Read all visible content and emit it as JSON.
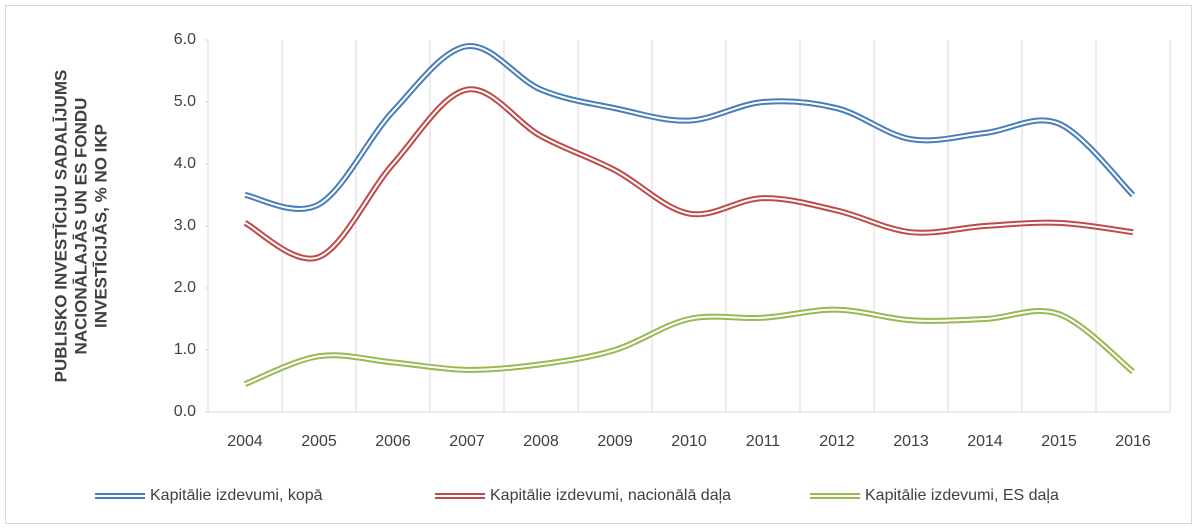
{
  "chart_data": {
    "type": "line",
    "ylabel": [
      "PUBLISKO INVESTĪCIJU SADALĪJUMS",
      "NACIONĀLAJĀS UN ES FONDU",
      "INVESTĪCIJĀS, % NO IKP"
    ],
    "categories": [
      "2004",
      "2005",
      "2006",
      "2007",
      "2008",
      "2009",
      "2010",
      "2011",
      "2012",
      "2013",
      "2014",
      "2015",
      "2016"
    ],
    "series": [
      {
        "name": "Kapitālie izdevumi, kopā",
        "color": "#4a7ebb",
        "values": [
          3.5,
          3.35,
          4.85,
          5.9,
          5.2,
          4.9,
          4.7,
          5.0,
          4.9,
          4.4,
          4.5,
          4.65,
          3.5
        ]
      },
      {
        "name": "Kapitālie izdevumi, nacionālā daļa",
        "color": "#be4b48",
        "values": [
          3.05,
          2.5,
          4.0,
          5.2,
          4.45,
          3.9,
          3.2,
          3.45,
          3.25,
          2.9,
          3.0,
          3.05,
          2.9
        ]
      },
      {
        "name": "Kapitālie izdevumi, ES daļa",
        "color": "#98b954",
        "values": [
          0.45,
          0.9,
          0.8,
          0.68,
          0.77,
          1.0,
          1.5,
          1.52,
          1.65,
          1.48,
          1.5,
          1.58,
          0.65
        ]
      }
    ],
    "ylim": [
      0,
      6
    ],
    "yticks": [
      {
        "value": 0,
        "label": "0.0"
      },
      {
        "value": 1,
        "label": "1.0"
      },
      {
        "value": 2,
        "label": "2.0"
      },
      {
        "value": 3,
        "label": "3.0"
      },
      {
        "value": 4,
        "label": "4.0"
      },
      {
        "value": 5,
        "label": "5.0"
      },
      {
        "value": 6,
        "label": "6.0"
      }
    ],
    "grid": "vertical",
    "legend": "bottom",
    "smooth": true
  }
}
